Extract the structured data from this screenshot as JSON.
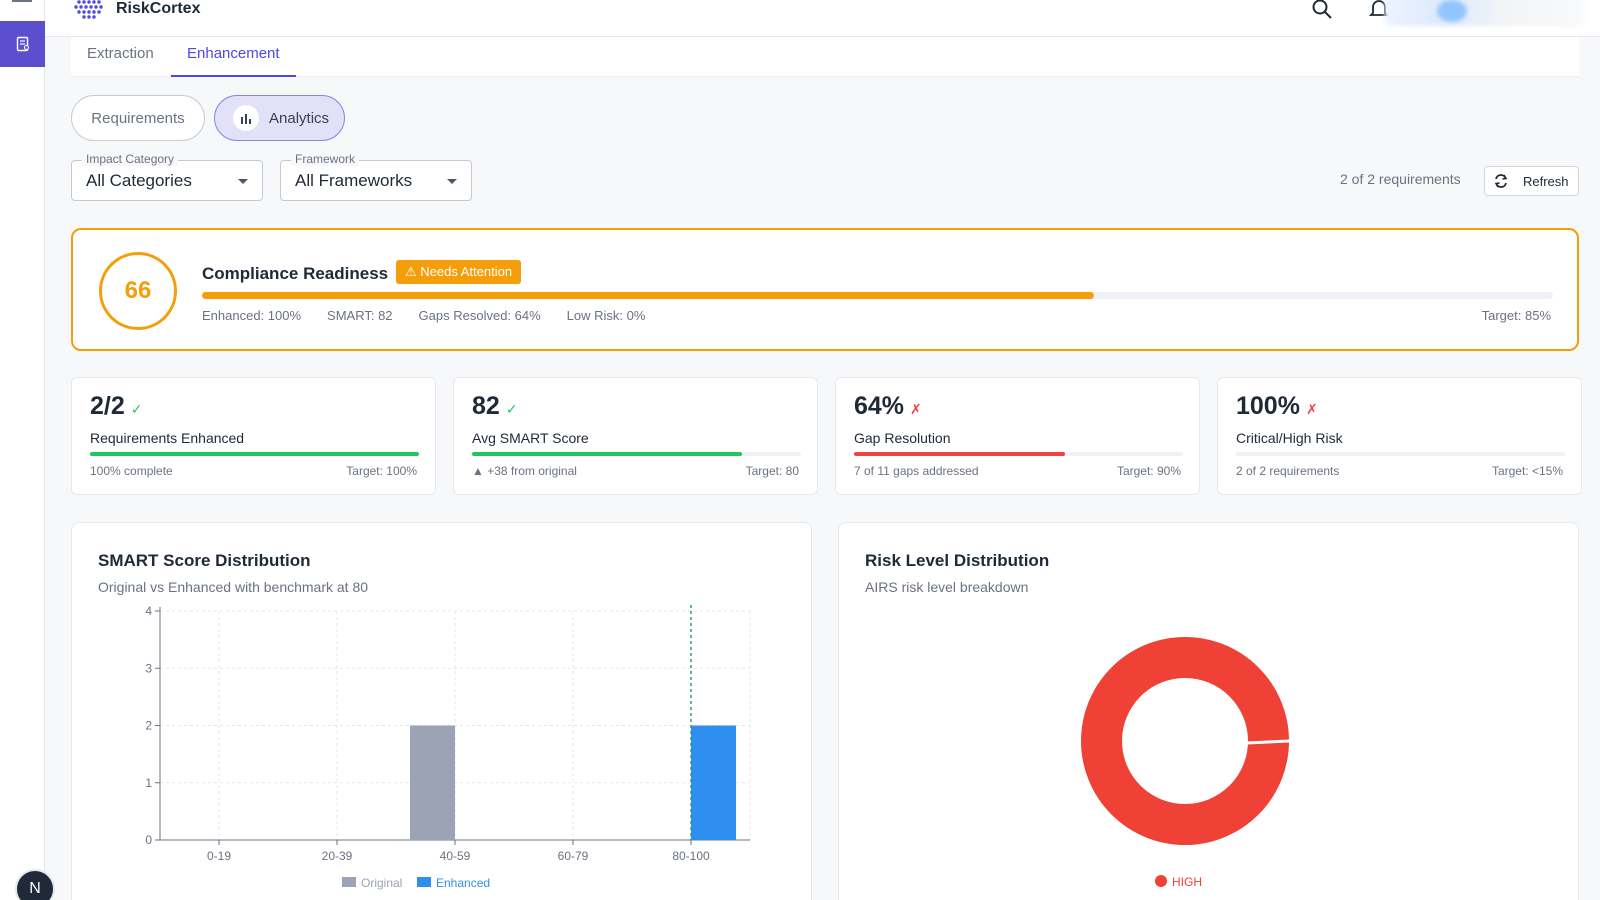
{
  "app": {
    "name": "RiskCortex"
  },
  "tabs": [
    {
      "label": "Extraction",
      "active": false
    },
    {
      "label": "Enhancement",
      "active": true
    }
  ],
  "view_toggle": {
    "requirements": "Requirements",
    "analytics": "Analytics",
    "selected": "Analytics"
  },
  "filters": {
    "impact": {
      "label": "Impact Category",
      "value": "All Categories"
    },
    "framework": {
      "label": "Framework",
      "value": "All Frameworks"
    }
  },
  "summary": {
    "count_text": "2 of 2 requirements",
    "refresh_label": "Refresh"
  },
  "readiness": {
    "score": "66",
    "score_value": 66,
    "title": "Compliance Readiness",
    "badge": "⚠ Needs Attention",
    "progress": 0.66,
    "metrics": [
      "Enhanced: 100%",
      "SMART: 82",
      "Gaps Resolved: 64%",
      "Low Risk: 0%"
    ],
    "target": "Target: 85%",
    "accent": "#f59e0b"
  },
  "kpis": [
    {
      "value": "2/2",
      "status": "✓",
      "ok": true,
      "label": "Requirements Enhanced",
      "progress": 1.0,
      "color": "#22c55e",
      "sub": "100% complete",
      "target": "Target: 100%"
    },
    {
      "value": "82",
      "status": "✓",
      "ok": true,
      "label": "Avg SMART Score",
      "progress": 0.82,
      "color": "#22c55e",
      "sub": "▲ +38 from original",
      "target": "Target: 80"
    },
    {
      "value": "64%",
      "status": "✗",
      "ok": false,
      "label": "Gap Resolution",
      "progress": 0.64,
      "color": "#ef4444",
      "sub": "7 of 11 gaps addressed",
      "target": "Target: 90%"
    },
    {
      "value": "100%",
      "status": "✗",
      "ok": false,
      "label": "Critical/High Risk",
      "progress": 0.0,
      "color": "#ef4444",
      "sub": "2 of 2 requirements",
      "target": "Target: <15%"
    }
  ],
  "charts": {
    "smart": {
      "title": "SMART Score Distribution",
      "subtitle": "Original vs Enhanced with benchmark at 80"
    },
    "risk": {
      "title": "Risk Level Distribution",
      "subtitle": "AIRS risk level breakdown"
    }
  },
  "chart_data": [
    {
      "type": "bar",
      "title": "SMART Score Distribution",
      "subtitle": "Original vs Enhanced with benchmark at 80",
      "categories": [
        "0-19",
        "20-39",
        "40-59",
        "60-79",
        "80-100"
      ],
      "series": [
        {
          "name": "Original",
          "values": [
            0,
            0,
            2,
            0,
            0
          ],
          "color": "#9ca3b4"
        },
        {
          "name": "Enhanced",
          "values": [
            0,
            0,
            0,
            0,
            2
          ],
          "color": "#2f8ff0"
        }
      ],
      "ylim": [
        0,
        4
      ],
      "yticks": [
        0,
        1,
        2,
        3,
        4
      ],
      "benchmark": {
        "category": "80-100",
        "color": "#2a9d7a"
      },
      "grid": true,
      "legend": "bottom"
    },
    {
      "type": "pie",
      "title": "Risk Level Distribution",
      "subtitle": "AIRS risk level breakdown",
      "slices": [
        {
          "name": "HIGH",
          "value": 2,
          "color": "#ef4135"
        }
      ],
      "donut": true,
      "legend": "bottom"
    }
  ]
}
